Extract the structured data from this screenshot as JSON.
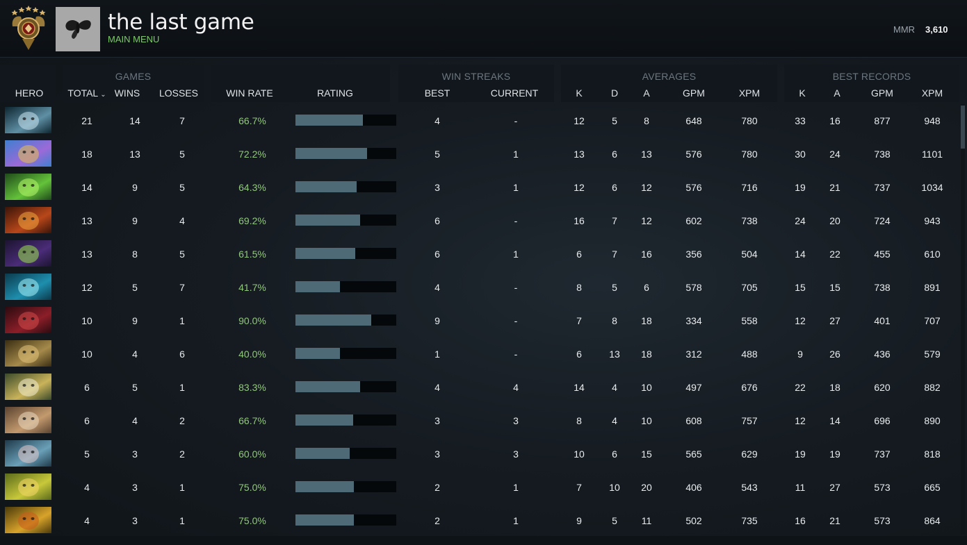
{
  "header": {
    "player_name": "the last game",
    "main_menu_label": "MAIN MENU",
    "mmr_label": "MMR",
    "mmr_value": "3,610",
    "rank_icon": "rank-medal-icon",
    "avatar_icon": "moth-avatar-icon"
  },
  "table": {
    "groups": {
      "games": "GAMES",
      "win_streaks": "WIN STREAKS",
      "averages": "AVERAGES",
      "best_records": "BEST RECORDS"
    },
    "columns": {
      "hero": "HERO",
      "total": "TOTAL",
      "wins": "WINS",
      "losses": "LOSSES",
      "win_rate": "WIN RATE",
      "rating": "RATING",
      "best": "BEST",
      "current": "CURRENT",
      "avg_k": "K",
      "avg_d": "D",
      "avg_a": "A",
      "avg_gpm": "GPM",
      "avg_xpm": "XPM",
      "best_k": "K",
      "best_a": "A",
      "best_gpm": "GPM",
      "best_xpm": "XPM"
    },
    "sort_indicator": "chevron-down-icon",
    "rows": [
      {
        "total": "21",
        "wins": "14",
        "losses": "7",
        "win_rate": "66.7%",
        "rating": 0.67,
        "best": "4",
        "current": "-",
        "k": "12",
        "d": "5",
        "a": "8",
        "gpm": "648",
        "xpm": "780",
        "bk": "33",
        "ba": "16",
        "bgpm": "877",
        "bxpm": "948",
        "hero_icon": "hero-portrait-icon",
        "colors": [
          "#0d2530",
          "#5f8fa4",
          "#c9e3ee"
        ]
      },
      {
        "total": "18",
        "wins": "13",
        "losses": "5",
        "win_rate": "72.2%",
        "rating": 0.71,
        "best": "5",
        "current": "1",
        "k": "13",
        "d": "6",
        "a": "13",
        "gpm": "576",
        "xpm": "780",
        "bk": "30",
        "ba": "24",
        "bgpm": "738",
        "bxpm": "1101",
        "hero_icon": "hero-portrait-icon",
        "colors": [
          "#3f7fd0",
          "#9b6ad8",
          "#e7c14a"
        ]
      },
      {
        "total": "14",
        "wins": "9",
        "losses": "5",
        "win_rate": "64.3%",
        "rating": 0.61,
        "best": "3",
        "current": "1",
        "k": "12",
        "d": "6",
        "a": "12",
        "gpm": "576",
        "xpm": "716",
        "bk": "19",
        "ba": "21",
        "bgpm": "737",
        "bxpm": "1034",
        "hero_icon": "hero-portrait-icon",
        "colors": [
          "#1f4a1a",
          "#64c23a",
          "#b6f56b"
        ]
      },
      {
        "total": "13",
        "wins": "9",
        "losses": "4",
        "win_rate": "69.2%",
        "rating": 0.64,
        "best": "6",
        "current": "-",
        "k": "16",
        "d": "7",
        "a": "12",
        "gpm": "602",
        "xpm": "738",
        "bk": "24",
        "ba": "20",
        "bgpm": "724",
        "bxpm": "943",
        "hero_icon": "hero-portrait-icon",
        "colors": [
          "#3a1408",
          "#b8471a",
          "#f0a540"
        ]
      },
      {
        "total": "13",
        "wins": "8",
        "losses": "5",
        "win_rate": "61.5%",
        "rating": 0.59,
        "best": "6",
        "current": "1",
        "k": "6",
        "d": "7",
        "a": "16",
        "gpm": "356",
        "xpm": "504",
        "bk": "14",
        "ba": "22",
        "bgpm": "455",
        "bxpm": "610",
        "hero_icon": "hero-portrait-icon",
        "colors": [
          "#1c1430",
          "#4a2c78",
          "#9be24a"
        ]
      },
      {
        "total": "12",
        "wins": "5",
        "losses": "7",
        "win_rate": "41.7%",
        "rating": 0.44,
        "best": "4",
        "current": "-",
        "k": "8",
        "d": "5",
        "a": "6",
        "gpm": "578",
        "xpm": "705",
        "bk": "15",
        "ba": "15",
        "bgpm": "738",
        "bxpm": "891",
        "hero_icon": "hero-portrait-icon",
        "colors": [
          "#0b3a4c",
          "#1e8fae",
          "#a6eef6"
        ]
      },
      {
        "total": "10",
        "wins": "9",
        "losses": "1",
        "win_rate": "90.0%",
        "rating": 0.75,
        "best": "9",
        "current": "-",
        "k": "7",
        "d": "8",
        "a": "18",
        "gpm": "334",
        "xpm": "558",
        "bk": "12",
        "ba": "27",
        "bgpm": "401",
        "bxpm": "707",
        "hero_icon": "hero-portrait-icon",
        "colors": [
          "#2a0b10",
          "#8c1e28",
          "#d14a4a"
        ]
      },
      {
        "total": "10",
        "wins": "4",
        "losses": "6",
        "win_rate": "40.0%",
        "rating": 0.44,
        "best": "1",
        "current": "-",
        "k": "6",
        "d": "13",
        "a": "18",
        "gpm": "312",
        "xpm": "488",
        "bk": "9",
        "ba": "26",
        "bgpm": "436",
        "bxpm": "579",
        "hero_icon": "hero-portrait-icon",
        "colors": [
          "#3a2d12",
          "#a58a4a",
          "#e2c27a"
        ]
      },
      {
        "total": "6",
        "wins": "5",
        "losses": "1",
        "win_rate": "83.3%",
        "rating": 0.64,
        "best": "4",
        "current": "4",
        "k": "14",
        "d": "4",
        "a": "10",
        "gpm": "497",
        "xpm": "676",
        "bk": "22",
        "ba": "18",
        "bgpm": "620",
        "bxpm": "882",
        "hero_icon": "hero-portrait-icon",
        "colors": [
          "#3a4a2a",
          "#c9b35a",
          "#f1ecd2"
        ]
      },
      {
        "total": "6",
        "wins": "4",
        "losses": "2",
        "win_rate": "66.7%",
        "rating": 0.57,
        "best": "3",
        "current": "3",
        "k": "8",
        "d": "4",
        "a": "10",
        "gpm": "608",
        "xpm": "757",
        "bk": "12",
        "ba": "14",
        "bgpm": "696",
        "bxpm": "890",
        "hero_icon": "hero-portrait-icon",
        "colors": [
          "#5a4330",
          "#c39a6e",
          "#e9d8c0"
        ]
      },
      {
        "total": "5",
        "wins": "3",
        "losses": "2",
        "win_rate": "60.0%",
        "rating": 0.54,
        "best": "3",
        "current": "3",
        "k": "10",
        "d": "6",
        "a": "15",
        "gpm": "565",
        "xpm": "629",
        "bk": "19",
        "ba": "19",
        "bgpm": "737",
        "bxpm": "818",
        "hero_icon": "hero-portrait-icon",
        "colors": [
          "#1f3a4a",
          "#6aa0b8",
          "#e3c7c7"
        ]
      },
      {
        "total": "4",
        "wins": "3",
        "losses": "1",
        "win_rate": "75.0%",
        "rating": 0.58,
        "best": "2",
        "current": "1",
        "k": "7",
        "d": "10",
        "a": "20",
        "gpm": "406",
        "xpm": "543",
        "bk": "11",
        "ba": "27",
        "bgpm": "573",
        "bxpm": "665",
        "hero_icon": "hero-portrait-icon",
        "colors": [
          "#5a6a1a",
          "#c8c83a",
          "#f3d56a"
        ]
      },
      {
        "total": "4",
        "wins": "3",
        "losses": "1",
        "win_rate": "75.0%",
        "rating": 0.58,
        "best": "2",
        "current": "1",
        "k": "9",
        "d": "5",
        "a": "11",
        "gpm": "502",
        "xpm": "735",
        "bk": "16",
        "ba": "21",
        "bgpm": "573",
        "bxpm": "864",
        "hero_icon": "hero-portrait-icon",
        "colors": [
          "#4a3a0a",
          "#d8a32a",
          "#c85a1a"
        ]
      }
    ]
  }
}
